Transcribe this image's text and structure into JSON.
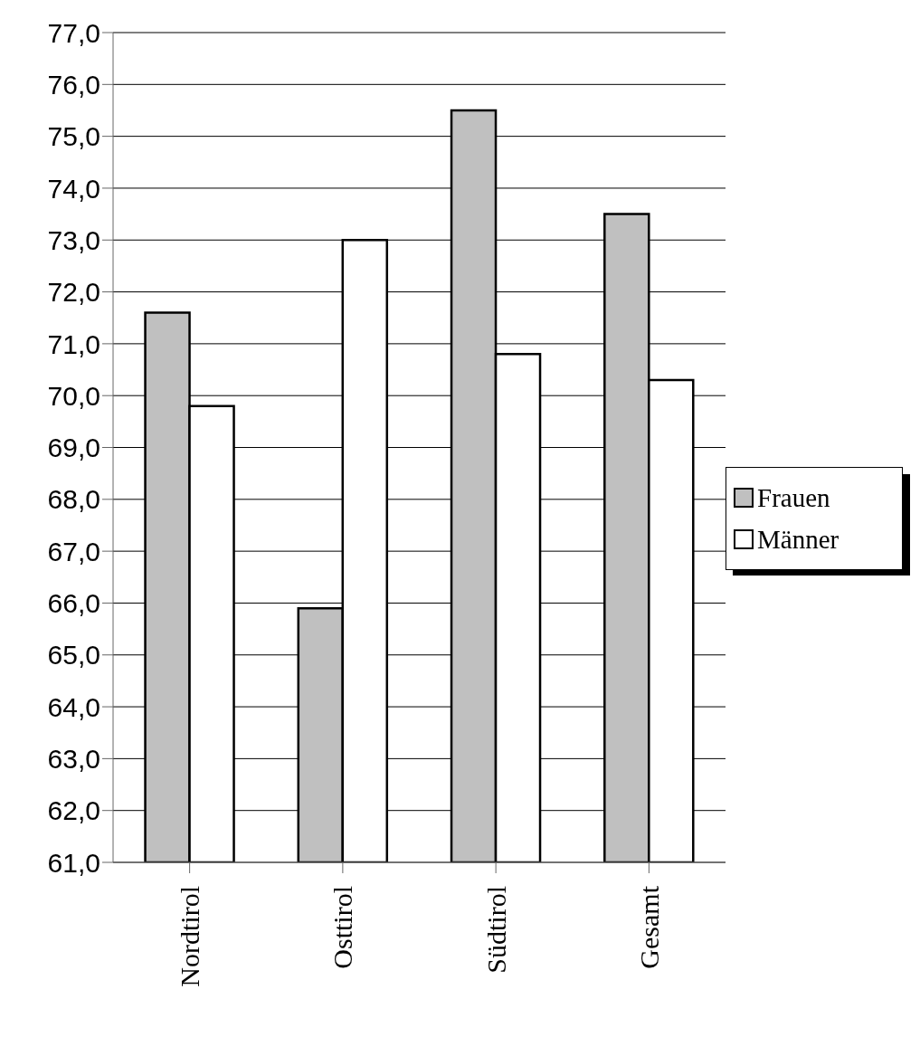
{
  "chart_data": {
    "type": "bar",
    "categories": [
      "Nordtirol",
      "Osttirol",
      "Südtirol",
      "Gesamt"
    ],
    "series": [
      {
        "name": "Frauen",
        "color": "#c0c0c0",
        "values": [
          71.6,
          65.9,
          75.5,
          73.5
        ]
      },
      {
        "name": "Männer",
        "color": "#ffffff",
        "values": [
          69.8,
          73.0,
          70.8,
          70.3
        ]
      }
    ],
    "ylim": [
      61,
      77
    ],
    "yticks": [
      {
        "value": 61,
        "label": "61,0"
      },
      {
        "value": 62,
        "label": "62,0"
      },
      {
        "value": 63,
        "label": "63,0"
      },
      {
        "value": 64,
        "label": "64,0"
      },
      {
        "value": 65,
        "label": "65,0"
      },
      {
        "value": 66,
        "label": "66,0"
      },
      {
        "value": 67,
        "label": "67,0"
      },
      {
        "value": 68,
        "label": "68,0"
      },
      {
        "value": 69,
        "label": "69,0"
      },
      {
        "value": 70,
        "label": "70,0"
      },
      {
        "value": 71,
        "label": "71,0"
      },
      {
        "value": 72,
        "label": "72,0"
      },
      {
        "value": 73,
        "label": "73,0"
      },
      {
        "value": 74,
        "label": "74,0"
      },
      {
        "value": 75,
        "label": "75,0"
      },
      {
        "value": 76,
        "label": "76,0"
      },
      {
        "value": 77,
        "label": "77,0"
      }
    ],
    "grid": "y",
    "legend": "right"
  }
}
